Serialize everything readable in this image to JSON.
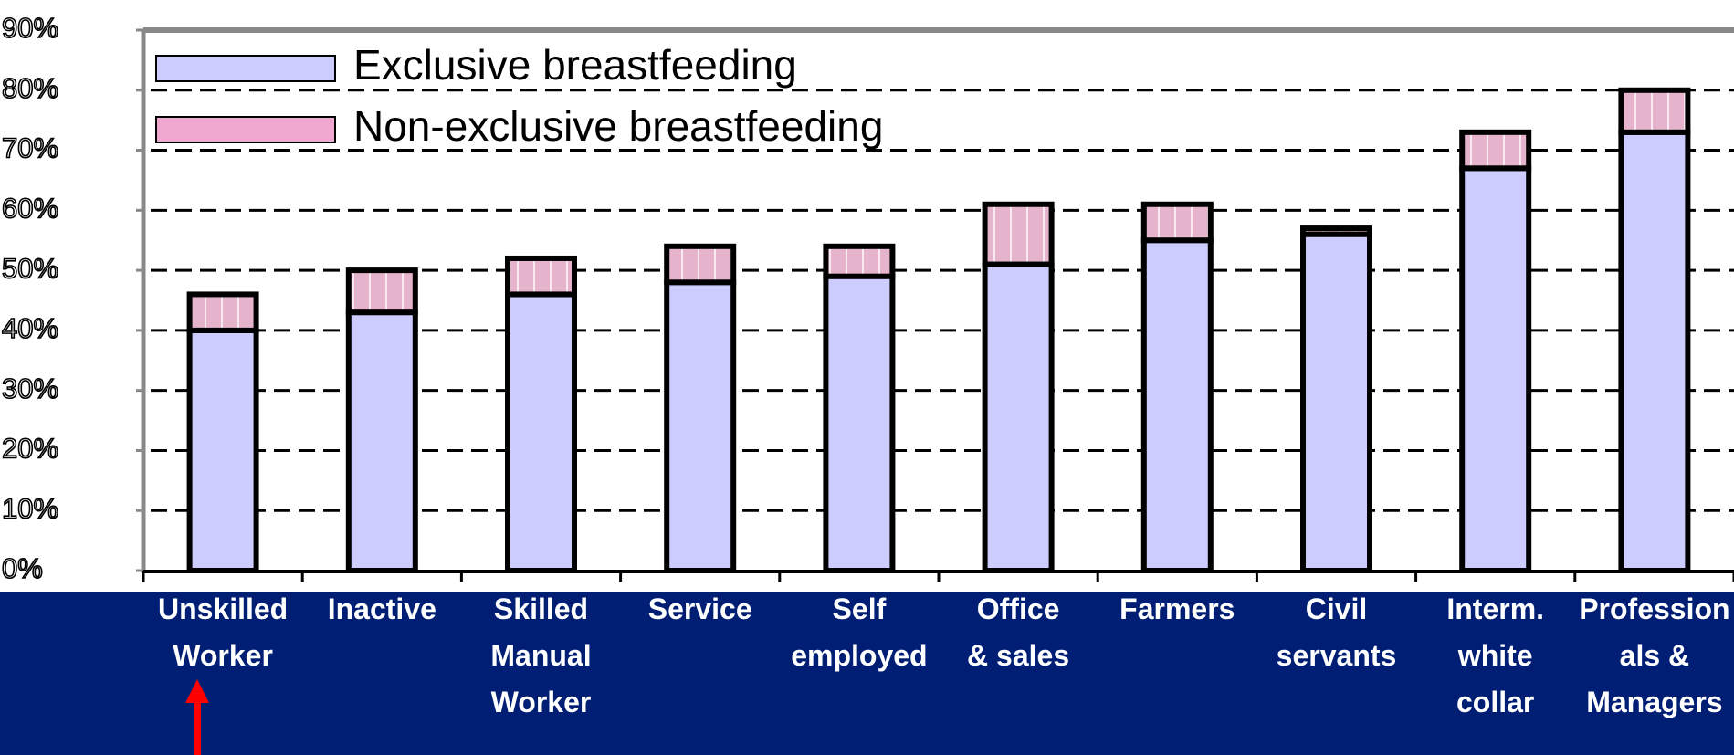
{
  "chart_data": {
    "type": "stacked_bar",
    "categories": [
      "Unskilled\nWorker",
      "Inactive",
      "Skilled\nManual\nWorker",
      "Service",
      "Self\nemployed",
      "Office\n& sales",
      "Farmers",
      "Civil\nservants",
      "Interm.\nwhite\ncollar",
      "Profession\nals &\nManagers"
    ],
    "series": [
      {
        "name": "Exclusive breastfeeding",
        "color": "#ccccff",
        "values": [
          40,
          43,
          46,
          48,
          49,
          51,
          55,
          56,
          67,
          73
        ]
      },
      {
        "name": "Non-exclusive breastfeeding",
        "color": "#e6b3cc",
        "values": [
          6,
          7,
          6,
          6,
          5,
          10,
          6,
          1,
          6,
          7
        ]
      }
    ],
    "ylim": [
      0,
      90
    ],
    "yticks": [
      {
        "value": 0,
        "label": "0%"
      },
      {
        "value": 10,
        "label": "10%"
      },
      {
        "value": 20,
        "label": "20%"
      },
      {
        "value": 30,
        "label": "30%"
      },
      {
        "value": 40,
        "label": "40%"
      },
      {
        "value": 50,
        "label": "50%"
      },
      {
        "value": 60,
        "label": "60%"
      },
      {
        "value": 70,
        "label": "70%"
      },
      {
        "value": 80,
        "label": "80%"
      },
      {
        "value": 90,
        "label": "90%"
      }
    ],
    "grid": true,
    "legend": "top-left"
  }
}
